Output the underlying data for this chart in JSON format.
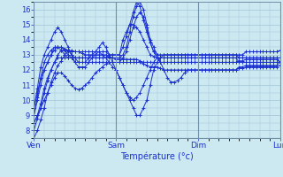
{
  "background_color": "#cce8f0",
  "grid_color": "#a0c4d8",
  "line_color": "#1a30d0",
  "marker_color": "#1a30d0",
  "xlabel": "Température (°c)",
  "xlim": [
    0,
    72
  ],
  "ylim": [
    7.5,
    16.5
  ],
  "yticks": [
    8,
    9,
    10,
    11,
    12,
    13,
    14,
    15,
    16
  ],
  "xtick_labels": [
    "Ven",
    "Sam",
    "Dim",
    "Lun"
  ],
  "xtick_positions": [
    0,
    24,
    48,
    72
  ],
  "series": [
    [
      7.5,
      8.0,
      8.7,
      9.5,
      10.5,
      11.2,
      11.8,
      12.3,
      12.6,
      13.0,
      13.2,
      13.3,
      13.2,
      13.2,
      13.1,
      13.0,
      13.0,
      13.0,
      13.0,
      13.0,
      13.0,
      13.0,
      12.9,
      12.8,
      12.7,
      12.7,
      12.7,
      12.7,
      12.7,
      12.7,
      12.7,
      12.6,
      12.5,
      12.5,
      12.5,
      12.5,
      12.5,
      12.5,
      12.5,
      12.5,
      12.5,
      12.5,
      12.5,
      12.5,
      12.5,
      12.5,
      12.5,
      12.5,
      12.5,
      12.5,
      12.5,
      12.5,
      12.5,
      12.5,
      12.5,
      12.5,
      12.5,
      12.5,
      12.5,
      12.5,
      12.6,
      12.6,
      12.7,
      12.7,
      12.7,
      12.7,
      12.7,
      12.7,
      12.7,
      12.7,
      12.7,
      12.7,
      12.5
    ],
    [
      8.5,
      9.0,
      9.5,
      10.0,
      10.5,
      11.0,
      11.5,
      11.8,
      11.8,
      11.6,
      11.3,
      11.0,
      10.8,
      10.7,
      10.8,
      11.0,
      11.2,
      11.5,
      11.8,
      12.0,
      12.2,
      12.4,
      12.5,
      12.5,
      12.5,
      12.5,
      12.5,
      12.5,
      12.5,
      12.5,
      12.5,
      12.5,
      12.4,
      12.3,
      12.2,
      12.2,
      12.2,
      12.1,
      12.0,
      12.0,
      12.0,
      12.0,
      12.0,
      12.0,
      12.0,
      12.0,
      12.0,
      12.0,
      12.0,
      12.0,
      12.0,
      12.0,
      12.0,
      12.0,
      12.0,
      12.0,
      12.0,
      12.0,
      12.0,
      12.0,
      12.1,
      12.1,
      12.2,
      12.2,
      12.2,
      12.2,
      12.2,
      12.2,
      12.2,
      12.2,
      12.2,
      12.2,
      12.3
    ],
    [
      9.5,
      10.5,
      11.5,
      12.0,
      12.5,
      13.0,
      13.3,
      13.5,
      13.5,
      13.4,
      13.3,
      13.2,
      13.2,
      13.2,
      13.2,
      13.2,
      13.2,
      13.2,
      13.2,
      13.2,
      13.2,
      13.2,
      13.0,
      13.0,
      13.0,
      13.0,
      14.0,
      14.5,
      15.0,
      15.0,
      14.8,
      14.5,
      14.0,
      13.5,
      13.0,
      12.9,
      12.8,
      12.8,
      12.8,
      12.8,
      12.8,
      12.8,
      12.8,
      12.8,
      12.8,
      12.8,
      12.8,
      12.8,
      12.8,
      12.8,
      12.8,
      12.8,
      12.8,
      12.8,
      12.8,
      12.8,
      12.8,
      12.8,
      12.8,
      12.8,
      12.8,
      12.8,
      12.8,
      12.8,
      12.8,
      12.8,
      12.8,
      12.8,
      12.8,
      12.8,
      12.8,
      12.8,
      12.8
    ],
    [
      9.0,
      10.0,
      11.0,
      12.0,
      12.5,
      13.0,
      13.5,
      13.5,
      13.3,
      13.0,
      12.8,
      12.8,
      12.8,
      12.8,
      12.8,
      12.8,
      12.8,
      12.8,
      12.8,
      12.8,
      12.8,
      12.8,
      12.8,
      12.8,
      12.8,
      12.8,
      13.0,
      13.5,
      14.5,
      15.5,
      16.2,
      16.5,
      16.0,
      15.0,
      14.0,
      13.5,
      13.0,
      12.5,
      12.0,
      11.5,
      11.2,
      11.2,
      11.3,
      11.5,
      11.8,
      12.0,
      12.0,
      12.0,
      12.0,
      12.0,
      12.0,
      12.0,
      12.0,
      12.0,
      12.0,
      12.0,
      12.0,
      12.0,
      12.0,
      12.0,
      12.2,
      12.2,
      12.3,
      12.3,
      12.3,
      12.3,
      12.3,
      12.3,
      12.3,
      12.3,
      12.3,
      12.3,
      12.5
    ],
    [
      8.0,
      8.8,
      9.5,
      10.5,
      11.3,
      12.0,
      12.5,
      12.8,
      12.8,
      12.8,
      12.8,
      12.8,
      12.8,
      12.8,
      12.8,
      12.8,
      12.8,
      12.8,
      12.8,
      12.8,
      12.8,
      12.8,
      13.0,
      13.0,
      13.0,
      13.0,
      13.5,
      14.2,
      15.0,
      15.8,
      16.5,
      16.2,
      15.3,
      14.5,
      13.8,
      13.2,
      12.8,
      12.5,
      12.5,
      12.5,
      12.5,
      12.5,
      12.5,
      12.5,
      12.5,
      12.5,
      12.5,
      12.5,
      12.5,
      12.5,
      12.5,
      12.5,
      12.5,
      12.5,
      12.5,
      12.5,
      12.5,
      12.5,
      12.5,
      12.5,
      12.5,
      12.5,
      12.5,
      12.5,
      12.5,
      12.5,
      12.5,
      12.5,
      12.5,
      12.5,
      12.5,
      12.5,
      12.5
    ],
    [
      8.5,
      9.0,
      9.8,
      10.8,
      11.5,
      12.0,
      12.5,
      13.0,
      13.3,
      13.3,
      13.3,
      13.0,
      12.8,
      12.5,
      12.5,
      12.5,
      12.5,
      12.5,
      12.5,
      12.5,
      12.5,
      12.5,
      12.5,
      12.5,
      12.5,
      12.5,
      12.8,
      13.2,
      14.0,
      14.8,
      15.5,
      15.8,
      15.5,
      14.8,
      13.8,
      13.2,
      13.0,
      13.0,
      13.0,
      13.0,
      13.0,
      13.0,
      13.0,
      13.0,
      13.0,
      13.0,
      13.0,
      13.0,
      13.0,
      13.0,
      13.0,
      13.0,
      13.0,
      13.0,
      13.0,
      13.0,
      13.0,
      13.0,
      13.0,
      13.0,
      13.0,
      13.0,
      13.2,
      13.2,
      13.2,
      13.2,
      13.2,
      13.2,
      13.2,
      13.2,
      13.2,
      13.2,
      13.3
    ],
    [
      9.0,
      10.2,
      11.5,
      12.5,
      13.0,
      13.3,
      13.5,
      13.5,
      13.5,
      13.3,
      13.0,
      12.8,
      12.5,
      12.5,
      12.5,
      12.5,
      12.8,
      13.0,
      13.2,
      13.5,
      13.8,
      13.5,
      13.0,
      12.5,
      12.0,
      11.5,
      11.0,
      10.5,
      10.0,
      9.5,
      9.0,
      9.0,
      9.5,
      10.0,
      11.0,
      12.0,
      12.5,
      12.8,
      13.0,
      13.0,
      13.0,
      13.0,
      13.0,
      13.0,
      13.0,
      13.0,
      13.0,
      13.0,
      13.0,
      13.0,
      13.0,
      13.0,
      13.0,
      13.0,
      13.0,
      13.0,
      13.0,
      13.0,
      13.0,
      13.0,
      12.8,
      12.8,
      12.8,
      12.8,
      12.8,
      12.8,
      12.8,
      12.8,
      12.8,
      12.8,
      12.8,
      12.8,
      12.5
    ],
    [
      9.5,
      10.8,
      12.2,
      13.0,
      13.5,
      14.0,
      14.5,
      14.8,
      14.5,
      14.0,
      13.5,
      13.0,
      12.5,
      12.2,
      12.2,
      12.2,
      12.5,
      12.8,
      13.0,
      13.2,
      13.0,
      12.8,
      12.5,
      12.2,
      12.0,
      11.5,
      11.0,
      10.5,
      10.2,
      10.0,
      10.2,
      10.5,
      11.0,
      11.5,
      12.0,
      12.5,
      12.8,
      12.8,
      12.8,
      12.8,
      12.8,
      12.8,
      12.8,
      12.8,
      12.8,
      12.8,
      12.8,
      12.8,
      12.8,
      12.8,
      12.8,
      12.8,
      12.8,
      12.8,
      12.8,
      12.8,
      12.8,
      12.8,
      12.8,
      12.8,
      12.5,
      12.5,
      12.5,
      12.5,
      12.5,
      12.5,
      12.5,
      12.5,
      12.5,
      12.5,
      12.5,
      12.5,
      12.5
    ]
  ]
}
